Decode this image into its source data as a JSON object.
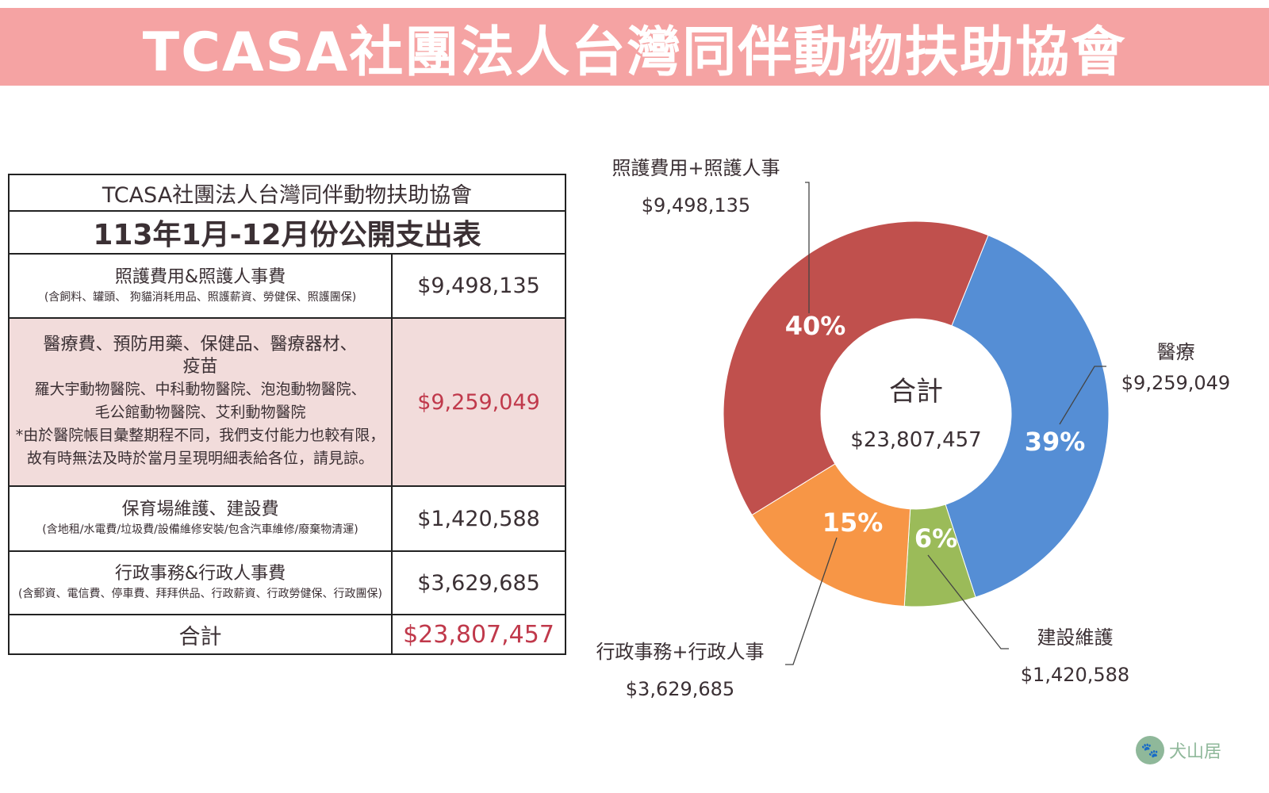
{
  "header": {
    "title": "TCASA社團法人台灣同伴動物扶助協會"
  },
  "table": {
    "org": "TCASA社團法人台灣同伴動物扶助協會",
    "title": "113年1月-12月份公開支出表",
    "rows": [
      {
        "category": "照護費用&照護人事費",
        "detail": "(含飼料、罐頭、 狗貓消耗用品、照護薪資、勞健保、照護團保)",
        "amount": "$9,498,135"
      },
      {
        "category": "醫療費、預防用藥、保健品、醫療器材、疫苗",
        "hospitals": "羅大宇動物醫院、中科動物醫院、泡泡動物醫院、毛公館動物醫院、艾利動物醫院",
        "note": "*由於醫院帳目彙整期程不同，我們支付能力也較有限，故有時無法及時於當月呈現明細表給各位，請見諒。",
        "amount": "$9,259,049"
      },
      {
        "category": "保育場維護、建設費",
        "detail": "(含地租/水電費/垃圾費/設備維修安裝/包含汽車維修/廢棄物清運)",
        "amount": "$1,420,588"
      },
      {
        "category": "行政事務&行政人事費",
        "detail": "(含郵資、電信費、停車費、拜拜供品、行政薪資、行政勞健保、行政團保)",
        "amount": "$3,629,685"
      }
    ],
    "total_label": "合計",
    "total_amount": "$23,807,457"
  },
  "chart_data": {
    "type": "pie",
    "donut": true,
    "center_label": "合計",
    "center_value": "$23,807,457",
    "slices": [
      {
        "name": "醫療",
        "value": 9259049,
        "display": "$9,259,049",
        "pct": "39%",
        "color": "#558ed5"
      },
      {
        "name": "建設維護",
        "value": 1420588,
        "display": "$1,420,588",
        "pct": "6%",
        "color": "#9bbb59"
      },
      {
        "name": "行政事務+行政人事",
        "value": 3629685,
        "display": "$3,629,685",
        "pct": "15%",
        "color": "#f79646"
      },
      {
        "name": "照護費用+照護人事",
        "value": 9498135,
        "display": "$9,498,135",
        "pct": "40%",
        "color": "#c0504d"
      }
    ]
  },
  "logo": {
    "text": "犬山居"
  }
}
